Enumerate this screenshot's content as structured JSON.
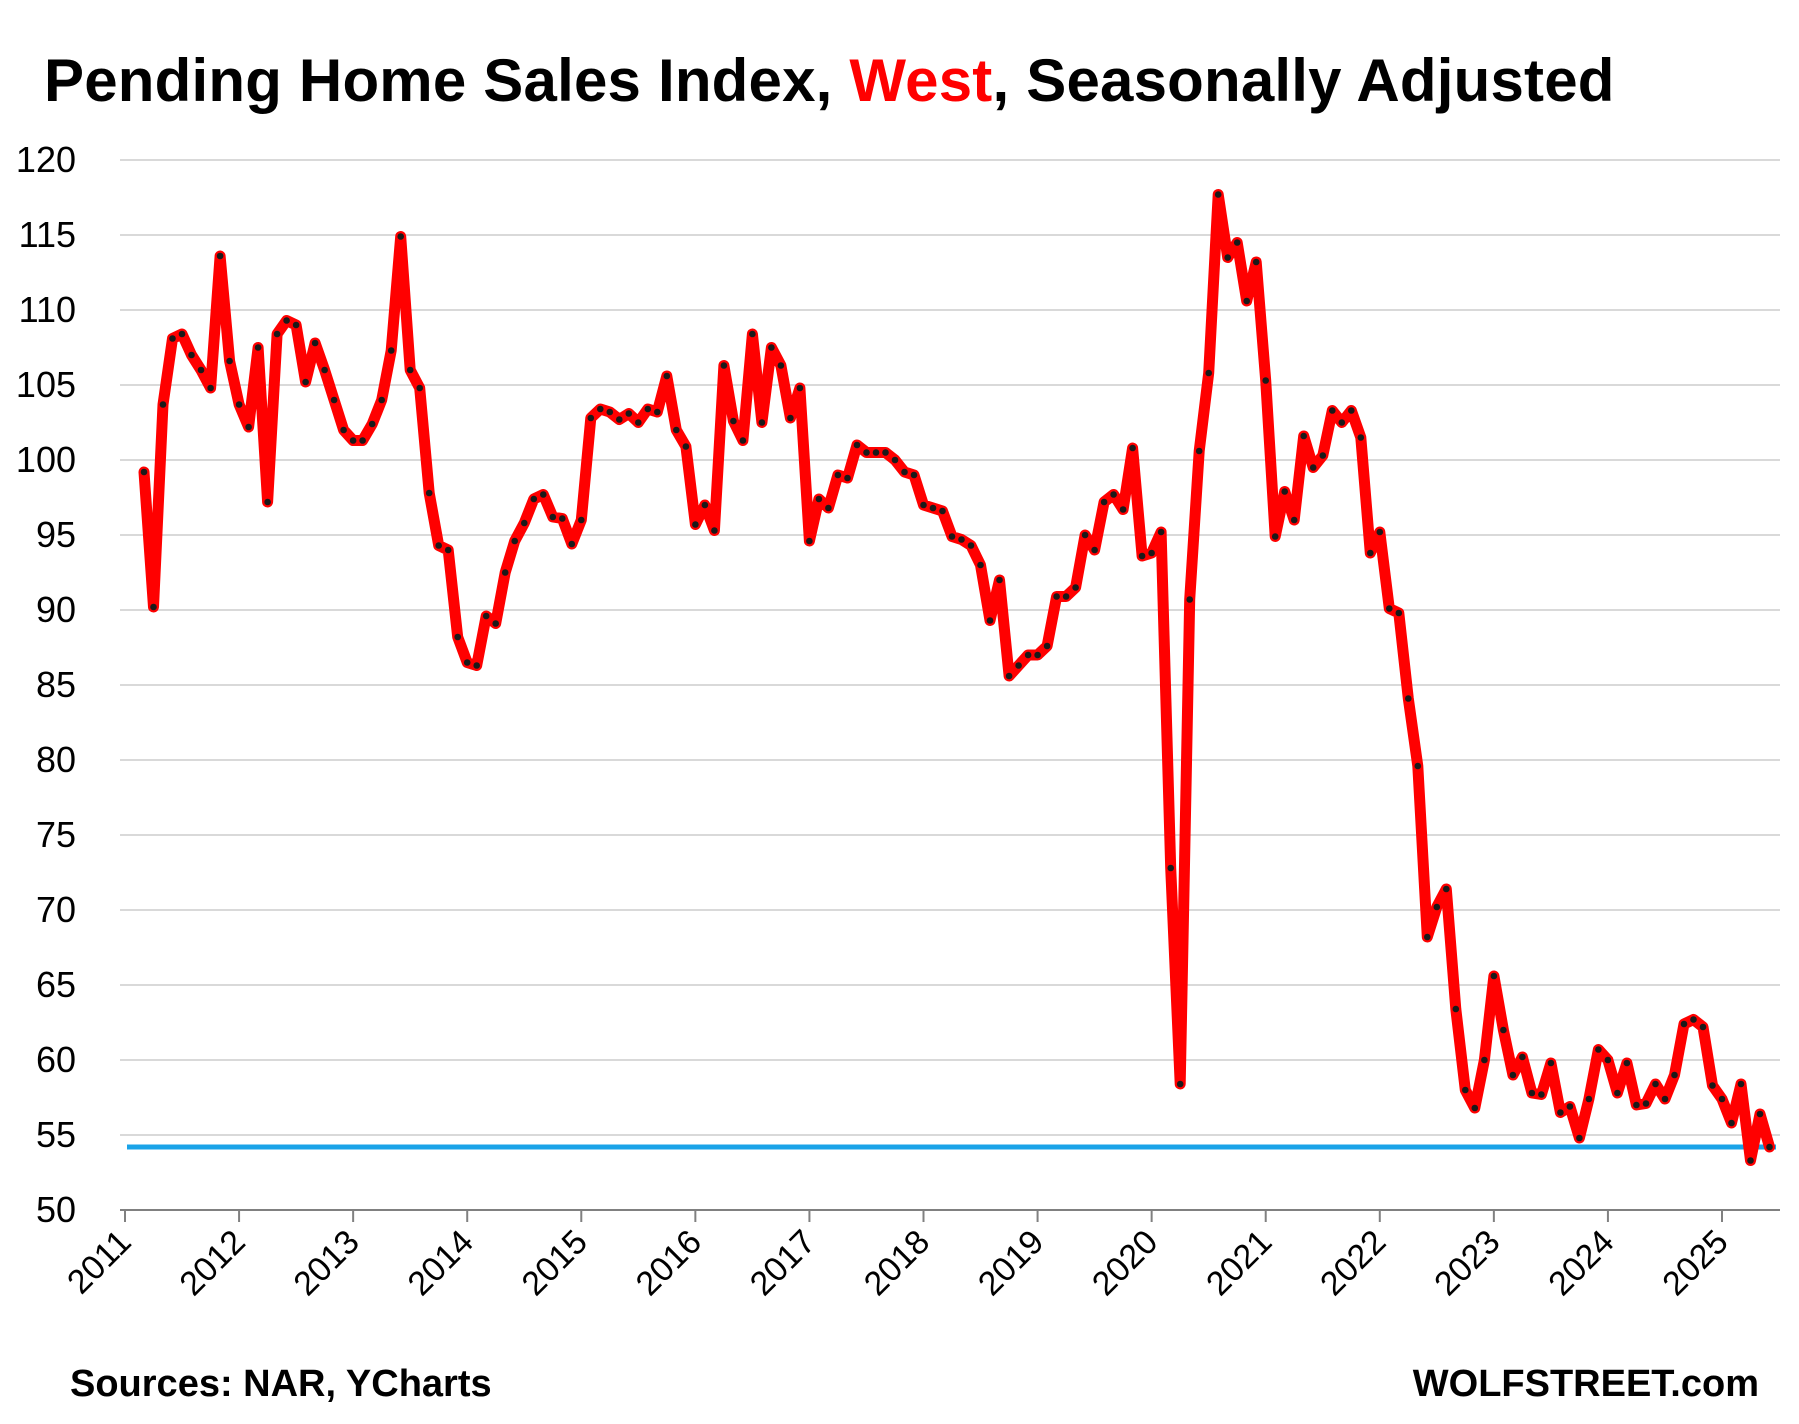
{
  "title": {
    "prefix": "Pending Home Sales Index, ",
    "highlight": "West",
    "suffix": ", Seasonally Adjusted"
  },
  "footer": {
    "sources": "Sources: NAR, YCharts",
    "brand": "WOLFSTREET.com"
  },
  "colors": {
    "line": "#ff0000",
    "marker": "#1a1a1a",
    "reference": "#1aa3e8",
    "grid": "#d9d9d9",
    "title_highlight": "#ff0000"
  },
  "chart_data": {
    "type": "line",
    "title": "Pending Home Sales Index, West, Seasonally Adjusted",
    "xlabel": "",
    "ylabel": "",
    "ylim": [
      50,
      120
    ],
    "yticks": [
      50,
      55,
      60,
      65,
      70,
      75,
      80,
      85,
      90,
      95,
      100,
      105,
      110,
      115,
      120
    ],
    "xticks": [
      "2011",
      "2012",
      "2013",
      "2014",
      "2015",
      "2016",
      "2017",
      "2018",
      "2019",
      "2020",
      "2021",
      "2022",
      "2023",
      "2024",
      "2025"
    ],
    "grid": true,
    "legend": "none",
    "start": "2011-03",
    "series": [
      {
        "values": [
          99.2,
          90.2,
          103.7,
          108.1,
          108.4,
          107.0,
          106.0,
          104.8,
          113.6,
          106.6,
          103.7,
          102.2,
          107.5,
          97.2,
          108.4,
          109.3,
          109.0,
          105.2,
          107.8,
          106.0,
          104.0,
          102.0,
          101.3,
          101.3,
          102.4,
          104.0,
          107.3,
          114.9,
          106.0,
          104.8,
          97.8,
          94.3,
          94.0,
          88.2,
          86.5,
          86.3,
          89.6,
          89.1,
          92.5,
          94.6,
          95.8,
          97.4,
          97.7,
          96.2,
          96.1,
          94.4,
          96.0,
          102.8,
          103.4,
          103.2,
          102.7,
          103.1,
          102.5,
          103.4,
          103.2,
          105.6,
          102.0,
          100.9,
          95.7,
          97.0,
          95.3,
          106.3,
          102.6,
          101.3,
          108.4,
          102.5,
          107.5,
          106.3,
          102.8,
          104.8,
          94.6,
          97.4,
          96.8,
          99.0,
          98.8,
          101.0,
          100.5,
          100.5,
          100.5,
          100.0,
          99.2,
          99.0,
          97.0,
          96.8,
          96.6,
          94.9,
          94.7,
          94.3,
          93.0,
          89.3,
          92.0,
          85.6,
          86.3,
          87.0,
          87.0,
          87.6,
          90.9,
          90.9,
          91.5,
          95.0,
          94.0,
          97.2,
          97.7,
          96.7,
          100.8,
          93.6,
          93.8,
          95.2,
          72.8,
          58.4,
          90.7,
          100.6,
          105.8,
          117.7,
          113.5,
          114.5,
          110.6,
          113.2,
          105.3,
          94.9,
          97.9,
          96.0,
          101.6,
          99.5,
          100.3,
          103.3,
          102.5,
          103.3,
          101.5,
          93.8,
          95.2,
          90.1,
          89.8,
          84.1,
          79.6,
          68.2,
          70.2,
          71.4,
          63.4,
          58.0,
          56.8,
          60.0,
          65.6,
          62.0,
          59.0,
          60.2,
          57.8,
          57.7,
          59.8,
          56.5,
          56.9,
          54.8,
          57.4,
          60.7,
          60.0,
          57.8,
          59.8,
          57.0,
          57.1,
          58.4,
          57.4,
          59.0,
          62.4,
          62.7,
          62.2,
          58.3,
          57.4,
          55.8,
          58.4,
          53.3,
          56.4,
          54.2
        ]
      }
    ],
    "reference_line": 54.2
  }
}
